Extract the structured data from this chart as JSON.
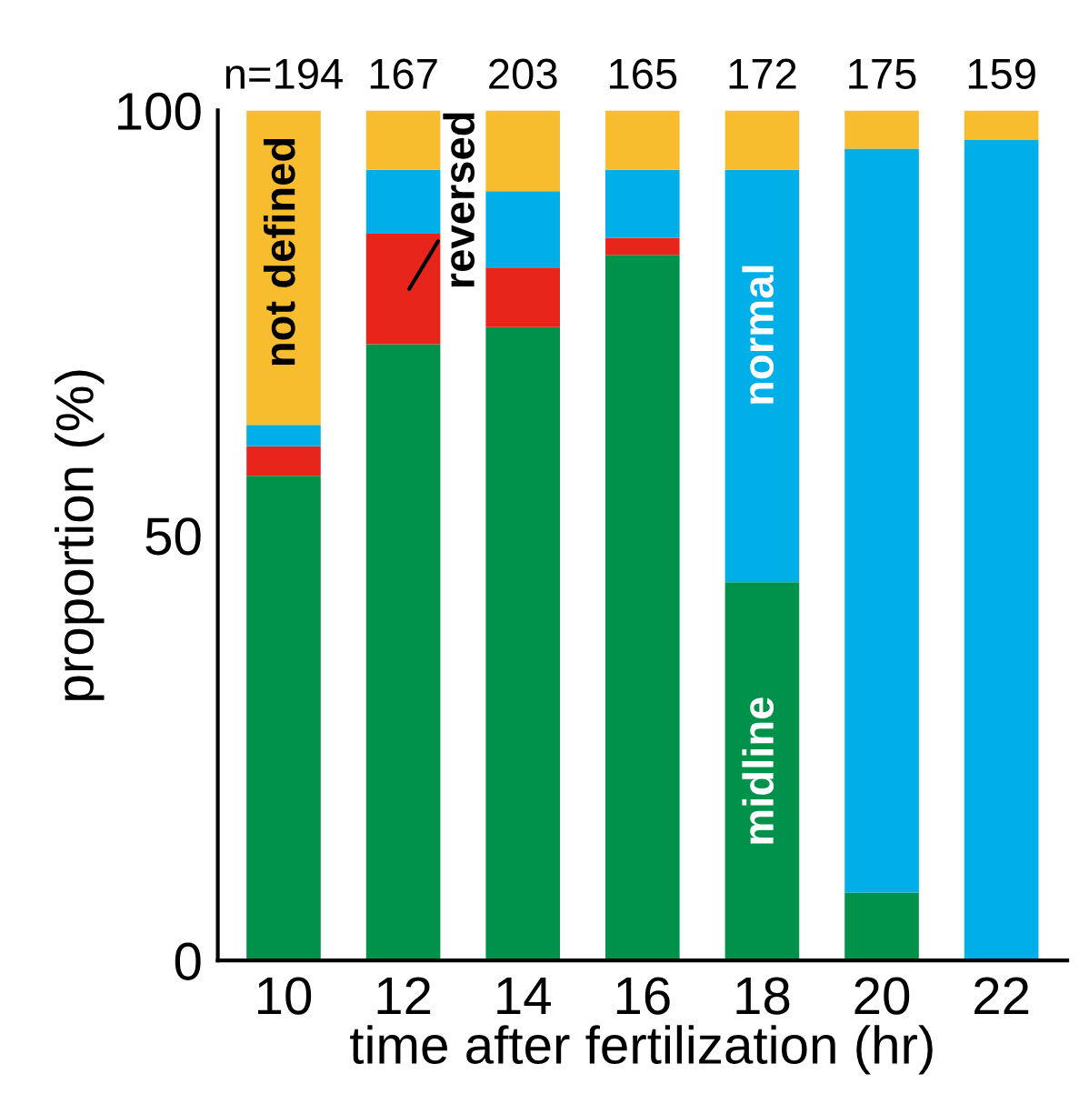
{
  "chart_data": {
    "type": "bar",
    "stacked": true,
    "xlabel": "time after fertilization (hr)",
    "ylabel": "proportion (%)",
    "categories": [
      "10",
      "12",
      "14",
      "16",
      "18",
      "20",
      "22"
    ],
    "series": [
      {
        "name": "midline",
        "color": "#00914a",
        "values": [
          57,
          72.5,
          74.5,
          83,
          44.5,
          8,
          0
        ]
      },
      {
        "name": "reversed",
        "color": "#e8251b",
        "values": [
          3.5,
          13,
          7,
          2,
          0,
          0,
          0
        ]
      },
      {
        "name": "normal",
        "color": "#00aee8",
        "values": [
          2.5,
          7.5,
          9,
          8,
          48.5,
          87.5,
          96.5
        ]
      },
      {
        "name": "not defined",
        "color": "#f7bd2f",
        "values": [
          37,
          7,
          9.5,
          7,
          7,
          4.5,
          3.5
        ]
      }
    ],
    "annotations": [
      "n=194",
      "167",
      "203",
      "165",
      "172",
      "175",
      "159"
    ],
    "ylim": [
      0,
      100
    ],
    "yticks": [
      0,
      50,
      100
    ],
    "grid": false,
    "legend": false
  }
}
